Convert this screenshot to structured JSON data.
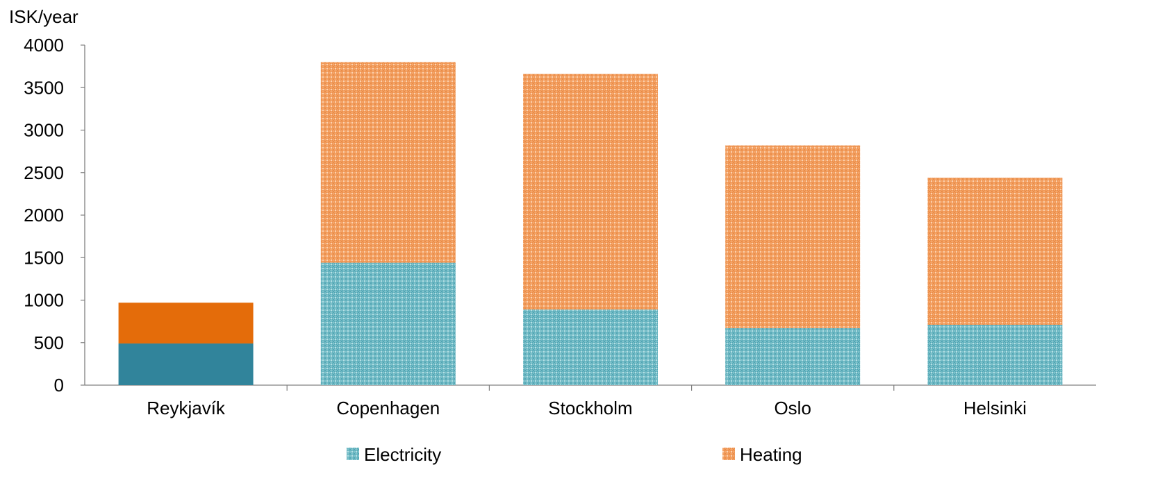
{
  "chart_data": {
    "type": "bar",
    "stacked": true,
    "ylabel": "ISK/year",
    "xlabel": "",
    "ylim": [
      0,
      4000
    ],
    "yticks": [
      0,
      500,
      1000,
      1500,
      2000,
      2500,
      3000,
      3500,
      4000
    ],
    "categories": [
      "Reykjavík",
      "Copenhagen",
      "Stockholm",
      "Oslo",
      "Helsinki"
    ],
    "series": [
      {
        "name": "Electricity",
        "values": [
          490,
          1440,
          890,
          670,
          710
        ],
        "color": "#31849b",
        "hatched_color": "#8ccbd3"
      },
      {
        "name": "Heating",
        "values": [
          480,
          2360,
          2770,
          2150,
          1730
        ],
        "color": "#e46c0a",
        "hatched_color": "#f7b07a"
      }
    ],
    "style_note_categories_solid": [
      "Reykjavík"
    ],
    "grid": false,
    "legend_position": "bottom"
  }
}
